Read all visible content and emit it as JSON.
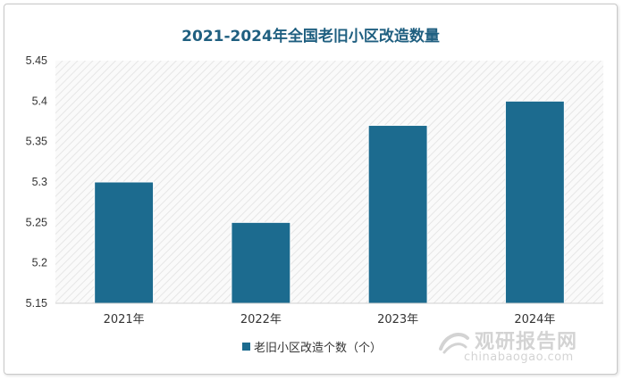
{
  "chart_data": {
    "type": "bar",
    "title": "2021-2024年全国老旧小区改造数量",
    "categories": [
      "2021年",
      "2022年",
      "2023年",
      "2024年"
    ],
    "series": [
      {
        "name": "老旧小区改造个数（个）",
        "values": [
          5.3,
          5.25,
          5.37,
          5.4
        ],
        "color": "#1c6b8f"
      }
    ],
    "yticks": [
      "5.15",
      "5.2",
      "5.25",
      "5.3",
      "5.35",
      "5.4",
      "5.45"
    ],
    "ylim": [
      5.15,
      5.45
    ],
    "grid": false,
    "legend_position": "bottom"
  },
  "watermark": {
    "brand_cn": "观研报告网",
    "brand_en": "chinabaogao.com",
    "icon": "chinabaogao-logo-icon"
  }
}
